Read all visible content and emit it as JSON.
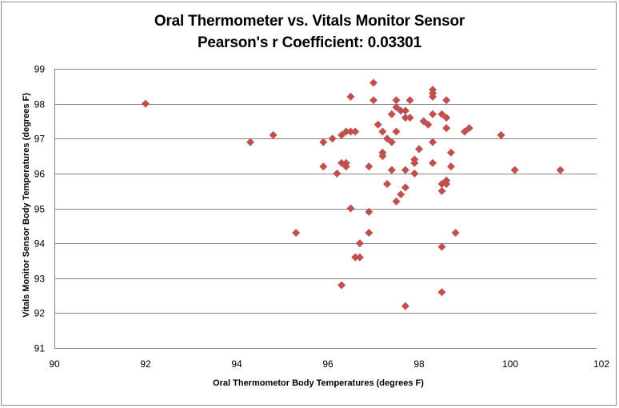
{
  "chart_data": {
    "type": "scatter",
    "title": "Oral Thermometer vs. Vitals Monitor Sensor",
    "subtitle": "Pearson's r Coefficient: 0.03301",
    "xlabel": "Oral Thermometor Body Temperatures (degrees F)",
    "ylabel": "Vitals Monitor Sensor Body Temperatures (degrees F)",
    "xlim": [
      90,
      102
    ],
    "ylim": [
      91,
      99
    ],
    "xticks": [
      90,
      92,
      94,
      96,
      98,
      100,
      102
    ],
    "yticks": [
      91,
      92,
      93,
      94,
      95,
      96,
      97,
      98,
      99
    ],
    "grid": "horizontal",
    "legend": "none",
    "marker": "diamond",
    "marker_color": "#c0504d",
    "points": [
      [
        92.0,
        98.0
      ],
      [
        94.3,
        96.9
      ],
      [
        94.8,
        97.1
      ],
      [
        95.3,
        94.3
      ],
      [
        95.9,
        96.9
      ],
      [
        95.9,
        96.2
      ],
      [
        96.1,
        97.0
      ],
      [
        96.2,
        96.0
      ],
      [
        96.3,
        97.1
      ],
      [
        96.3,
        96.3
      ],
      [
        96.3,
        92.8
      ],
      [
        96.4,
        97.2
      ],
      [
        96.4,
        96.3
      ],
      [
        96.4,
        96.2
      ],
      [
        96.5,
        98.2
      ],
      [
        96.5,
        97.2
      ],
      [
        96.5,
        95.0
      ],
      [
        96.6,
        97.2
      ],
      [
        96.6,
        93.6
      ],
      [
        96.7,
        93.6
      ],
      [
        96.7,
        94.0
      ],
      [
        96.9,
        96.2
      ],
      [
        96.9,
        94.9
      ],
      [
        96.9,
        94.3
      ],
      [
        97.0,
        98.6
      ],
      [
        97.0,
        98.1
      ],
      [
        97.1,
        97.4
      ],
      [
        97.2,
        97.2
      ],
      [
        97.2,
        96.6
      ],
      [
        97.2,
        96.5
      ],
      [
        97.3,
        97.0
      ],
      [
        97.3,
        95.7
      ],
      [
        97.4,
        97.7
      ],
      [
        97.4,
        96.9
      ],
      [
        97.4,
        96.1
      ],
      [
        97.5,
        98.1
      ],
      [
        97.5,
        97.9
      ],
      [
        97.5,
        97.2
      ],
      [
        97.5,
        95.2
      ],
      [
        97.6,
        97.8
      ],
      [
        97.6,
        95.4
      ],
      [
        97.7,
        97.8
      ],
      [
        97.7,
        97.6
      ],
      [
        97.7,
        96.1
      ],
      [
        97.7,
        95.6
      ],
      [
        97.7,
        92.2
      ],
      [
        97.8,
        98.1
      ],
      [
        97.8,
        97.6
      ],
      [
        97.9,
        96.4
      ],
      [
        97.9,
        96.3
      ],
      [
        97.9,
        96.0
      ],
      [
        98.0,
        96.7
      ],
      [
        98.1,
        97.5
      ],
      [
        98.2,
        97.4
      ],
      [
        98.3,
        98.4
      ],
      [
        98.3,
        98.3
      ],
      [
        98.3,
        98.2
      ],
      [
        98.3,
        97.7
      ],
      [
        98.3,
        96.9
      ],
      [
        98.3,
        96.3
      ],
      [
        98.5,
        97.7
      ],
      [
        98.5,
        95.7
      ],
      [
        98.5,
        95.5
      ],
      [
        98.5,
        93.9
      ],
      [
        98.5,
        92.6
      ],
      [
        98.6,
        98.1
      ],
      [
        98.6,
        97.6
      ],
      [
        98.6,
        97.3
      ],
      [
        98.6,
        95.8
      ],
      [
        98.6,
        95.7
      ],
      [
        98.7,
        96.6
      ],
      [
        98.7,
        96.2
      ],
      [
        98.8,
        94.3
      ],
      [
        99.0,
        97.2
      ],
      [
        99.1,
        97.3
      ],
      [
        99.8,
        97.1
      ],
      [
        100.1,
        96.1
      ],
      [
        101.1,
        96.1
      ]
    ]
  }
}
